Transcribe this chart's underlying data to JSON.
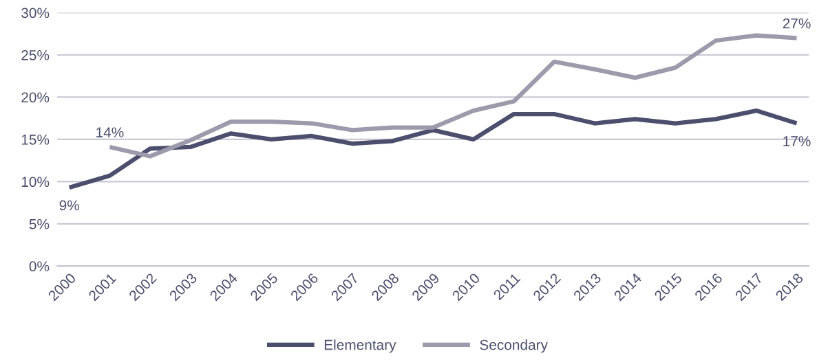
{
  "chart_data": {
    "type": "line",
    "categories": [
      "2000",
      "2001",
      "2002",
      "2003",
      "2004",
      "2005",
      "2006",
      "2007",
      "2008",
      "2009",
      "2010",
      "2011",
      "2012",
      "2013",
      "2014",
      "2015",
      "2016",
      "2017",
      "2018"
    ],
    "series": [
      {
        "name": "Elementary",
        "color": "#4b4e6d",
        "values": [
          9.3,
          10.7,
          13.9,
          14.1,
          15.7,
          15.0,
          15.4,
          14.5,
          14.8,
          16.1,
          15.0,
          18.0,
          18.0,
          16.9,
          17.4,
          16.9,
          17.4,
          18.4,
          16.9
        ]
      },
      {
        "name": "Secondary",
        "color": "#9c9aab",
        "values": [
          null,
          14.1,
          13.0,
          14.9,
          17.1,
          17.1,
          16.9,
          16.1,
          16.4,
          16.4,
          18.4,
          19.5,
          24.2,
          23.3,
          22.3,
          23.5,
          26.7,
          27.3,
          27.0
        ]
      }
    ],
    "ylim": [
      0,
      30
    ],
    "yticks": [
      {
        "value": 0,
        "label": "0%"
      },
      {
        "value": 5,
        "label": "5%"
      },
      {
        "value": 10,
        "label": "10%"
      },
      {
        "value": 15,
        "label": "15%"
      },
      {
        "value": 20,
        "label": "20%"
      },
      {
        "value": 25,
        "label": "25%"
      },
      {
        "value": 30,
        "label": "30%"
      }
    ],
    "grid": "y",
    "legend": "bottom",
    "marker": "none",
    "line_style": "solid",
    "annotations": [
      {
        "text": "9%",
        "x": "2000",
        "y": 9.3
      },
      {
        "text": "14%",
        "x": "2001",
        "y": 14.1
      },
      {
        "text": "27%",
        "x": "2018",
        "y": 27.0
      },
      {
        "text": "17%",
        "x": "2018",
        "y": 16.9
      }
    ]
  }
}
